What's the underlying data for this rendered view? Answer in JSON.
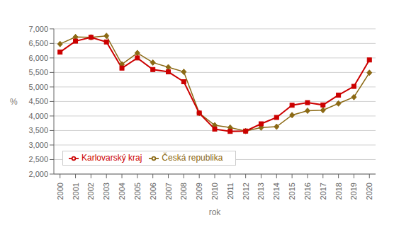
{
  "chart_data": {
    "type": "line",
    "x": [
      2000,
      2001,
      2002,
      2003,
      2004,
      2005,
      2006,
      2007,
      2008,
      2009,
      2010,
      2011,
      2012,
      2013,
      2014,
      2015,
      2016,
      2017,
      2018,
      2019,
      2020
    ],
    "series": [
      {
        "name": "Česká republika",
        "color": "#8B6914",
        "marker": "diamond",
        "values": [
          6.48,
          6.72,
          6.71,
          6.76,
          5.78,
          6.17,
          5.84,
          5.68,
          5.52,
          4.1,
          3.68,
          3.6,
          3.48,
          3.6,
          3.63,
          4.03,
          4.18,
          4.2,
          4.43,
          4.65,
          5.49
        ]
      },
      {
        "name": "Karlovarský kraj",
        "color": "#CC0000",
        "marker": "square",
        "values": [
          6.2,
          6.58,
          6.71,
          6.55,
          5.65,
          6.0,
          5.6,
          5.52,
          5.18,
          4.1,
          3.55,
          3.47,
          3.48,
          3.73,
          3.95,
          4.37,
          4.46,
          4.38,
          4.72,
          5.02,
          5.93
        ]
      }
    ],
    "xlabel": "rok",
    "ylabel": "%",
    "xlim": [
      1999.6,
      2020.4
    ],
    "xticks": [
      2000,
      2001,
      2002,
      2003,
      2004,
      2005,
      2006,
      2007,
      2008,
      2009,
      2010,
      2011,
      2012,
      2013,
      2014,
      2015,
      2016,
      2017,
      2018,
      2019,
      2020
    ],
    "ylim": [
      2.0,
      7.0
    ],
    "yticks": [
      {
        "value": 2.0,
        "label": "2,000"
      },
      {
        "value": 2.5,
        "label": "2,500"
      },
      {
        "value": 3.0,
        "label": "3,000"
      },
      {
        "value": 3.5,
        "label": "3,500"
      },
      {
        "value": 4.0,
        "label": "4,000"
      },
      {
        "value": 4.5,
        "label": "4,500"
      },
      {
        "value": 5.0,
        "label": "5,000"
      },
      {
        "value": 5.5,
        "label": "5,500"
      },
      {
        "value": 6.0,
        "label": "6,000"
      },
      {
        "value": 6.5,
        "label": "6,500"
      },
      {
        "value": 7.0,
        "label": "7,000"
      }
    ],
    "grid": "y",
    "legend": "lower left"
  }
}
